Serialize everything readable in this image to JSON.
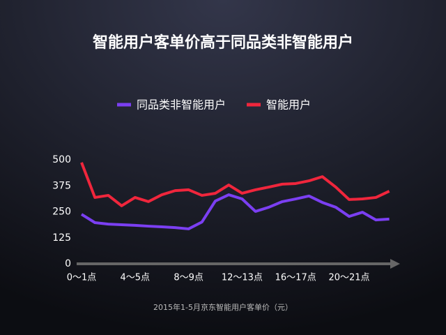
{
  "chart_data": {
    "type": "line",
    "title": "智能用户客单价高于同品类非智能用户",
    "caption": "2015年1-5月京东智能用户客单价（元）",
    "categories": [
      "0～1点",
      null,
      null,
      null,
      "4～5点",
      null,
      null,
      null,
      "8～9点",
      null,
      null,
      null,
      "12～13点",
      null,
      null,
      null,
      "16～17点",
      null,
      null,
      null,
      "20～21点",
      null,
      null,
      null
    ],
    "series": [
      {
        "name": "同品类非智能用户",
        "color": "#7b3ff2",
        "values": [
          238,
          198,
          191,
          188,
          185,
          181,
          178,
          174,
          168,
          201,
          302,
          332,
          312,
          252,
          272,
          299,
          312,
          326,
          295,
          272,
          228,
          248,
          211,
          215
        ]
      },
      {
        "name": "智能用户",
        "color": "#f0263c",
        "values": [
          487,
          319,
          329,
          279,
          319,
          299,
          332,
          352,
          356,
          329,
          339,
          379,
          339,
          356,
          369,
          383,
          386,
          399,
          419,
          369,
          309,
          312,
          319,
          349
        ]
      }
    ],
    "ylim": [
      0,
      500
    ],
    "yticks": [
      0,
      125,
      250,
      375,
      500
    ],
    "grid": false
  }
}
